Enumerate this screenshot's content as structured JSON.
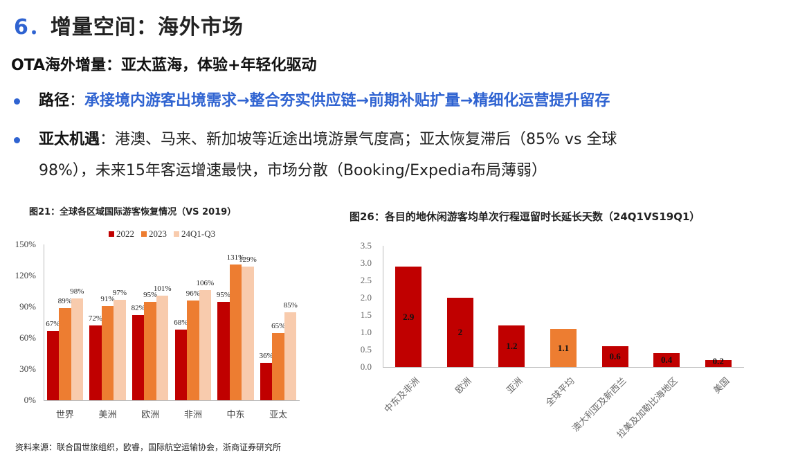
{
  "header": {
    "title_num": "6．",
    "title_text": "增量空间：海外市场",
    "subtitle": "OTA海外增量：亚太蓝海，体验+年轻化驱动"
  },
  "bullets": [
    {
      "label": "路径",
      "sep": "：",
      "text": "承接境内游客出境需求→整合夯实供应链→前期补贴扩量→精细化运营提升留存"
    },
    {
      "label": "亚太机遇",
      "sep": "：",
      "line1": "港澳、马来、新加坡等近途出境游景气度高；亚太恢复滞后（85% vs 全球",
      "line2": "98%），未来15年客运增速最快，市场分散（Booking/Expedia布局薄弱）"
    }
  ],
  "colors": {
    "accent_blue": "#2f63d1",
    "c2022": "#c00000",
    "c2023": "#ed7d31",
    "c24": "#f8cbad",
    "bar_red": "#c00000",
    "bar_orange": "#ed7d31"
  },
  "source": "资料来源：联合国世旅组织，欧睿，国际航空运输协会，浙商证券研究所",
  "chart_data": [
    {
      "type": "bar",
      "title": "图21：全球各区域国际游客恢复情况（VS 2019）",
      "categories": [
        "世界",
        "美洲",
        "欧洲",
        "非洲",
        "中东",
        "亚太"
      ],
      "series": [
        {
          "name": "2022",
          "values": [
            67,
            72,
            82,
            68,
            95,
            36
          ],
          "labels": [
            "67%",
            "72%",
            "82%",
            "68%",
            "95%",
            "36%"
          ]
        },
        {
          "name": "2023",
          "values": [
            89,
            91,
            95,
            96,
            131,
            65
          ],
          "labels": [
            "89%",
            "91%",
            "95%",
            "96%",
            "131%",
            "65%"
          ]
        },
        {
          "name": "24Q1-Q3",
          "values": [
            98,
            97,
            101,
            106,
            129,
            85
          ],
          "labels": [
            "98%",
            "97%",
            "101%",
            "106%",
            "129%",
            "85%"
          ]
        }
      ],
      "yticks": [
        "0%",
        "30%",
        "60%",
        "90%",
        "120%",
        "150%"
      ],
      "ylim": [
        0,
        150
      ],
      "xlabel": "",
      "ylabel": "",
      "legend_position": "top",
      "grid": false
    },
    {
      "type": "bar",
      "title": "图26：各目的地休闲游客均单次行程逗留时长延长天数（24Q1VS19Q1）",
      "categories": [
        "中东及非洲",
        "欧洲",
        "亚洲",
        "全球平均",
        "澳大利亚及新西兰",
        "拉美及加勒比海地区",
        "美国"
      ],
      "values": [
        2.9,
        2,
        1.2,
        1.1,
        0.6,
        0.4,
        0.2
      ],
      "labels": [
        "2.9",
        "2",
        "1.2",
        "1.1",
        "0.6",
        "0.4",
        "0.2"
      ],
      "highlight": [
        false,
        false,
        false,
        true,
        false,
        false,
        false
      ],
      "yticks": [
        "0.0",
        "0.5",
        "1.0",
        "1.5",
        "2.0",
        "2.5",
        "3.0",
        "3.5"
      ],
      "ylim": [
        0,
        3.5
      ],
      "xlabel": "",
      "ylabel": "",
      "grid": false
    }
  ]
}
